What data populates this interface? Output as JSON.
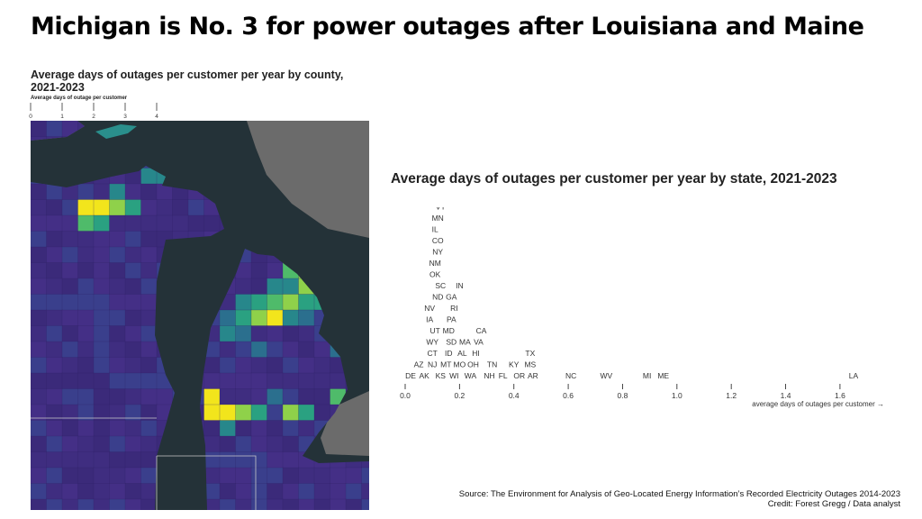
{
  "headline": "Michigan is No. 3 for power outages after Louisiana and Maine",
  "map": {
    "title": "Average days of outages per customer per year by county, 2021-2023",
    "legend_label": "Average days of outage per customer",
    "legend_ticks": [
      "0",
      "1",
      "2",
      "3",
      "4"
    ]
  },
  "colors": {
    "water": "#243238",
    "land_other": "#6b6b6b",
    "low": "#3b2a7a",
    "mid": "#2a8f8c",
    "high": "#f2e51c"
  },
  "chart_data": {
    "type": "scatter",
    "title": "Average days of outages per customer per year by state, 2021-2023",
    "xlabel": "average days of outages per customer →",
    "xlim": [
      0,
      1.65
    ],
    "x_ticks": [
      0.0,
      0.2,
      0.4,
      0.6,
      0.8,
      1.0,
      1.2,
      1.4,
      1.6
    ],
    "x_tick_labels": [
      "0.0",
      "0.2",
      "0.4",
      "0.6",
      "0.8",
      "1.0",
      "1.2",
      "1.4",
      "1.6"
    ],
    "points": [
      {
        "label": "DE",
        "x": 0.02
      },
      {
        "label": "AK",
        "x": 0.07
      },
      {
        "label": "AZ",
        "x": 0.05
      },
      {
        "label": "NJ",
        "x": 0.1
      },
      {
        "label": "CT",
        "x": 0.1
      },
      {
        "label": "WY",
        "x": 0.1
      },
      {
        "label": "UT",
        "x": 0.11
      },
      {
        "label": "IA",
        "x": 0.09
      },
      {
        "label": "NV",
        "x": 0.09
      },
      {
        "label": "KS",
        "x": 0.13
      },
      {
        "label": "ND",
        "x": 0.12
      },
      {
        "label": "SC",
        "x": 0.13
      },
      {
        "label": "OK",
        "x": 0.11
      },
      {
        "label": "NM",
        "x": 0.11
      },
      {
        "label": "NY",
        "x": 0.12
      },
      {
        "label": "CO",
        "x": 0.12
      },
      {
        "label": "IL",
        "x": 0.11
      },
      {
        "label": "MN",
        "x": 0.12
      },
      {
        "label": "VT",
        "x": 0.13
      },
      {
        "label": "NE",
        "x": 0.13
      },
      {
        "label": "MT",
        "x": 0.15
      },
      {
        "label": "WI",
        "x": 0.18
      },
      {
        "label": "ID",
        "x": 0.16
      },
      {
        "label": "SD",
        "x": 0.17
      },
      {
        "label": "MD",
        "x": 0.16
      },
      {
        "label": "PA",
        "x": 0.17
      },
      {
        "label": "RI",
        "x": 0.18
      },
      {
        "label": "GA",
        "x": 0.17
      },
      {
        "label": "MO",
        "x": 0.2
      },
      {
        "label": "IN",
        "x": 0.2
      },
      {
        "label": "AL",
        "x": 0.21
      },
      {
        "label": "MA",
        "x": 0.22
      },
      {
        "label": "WA",
        "x": 0.24
      },
      {
        "label": "OH",
        "x": 0.25
      },
      {
        "label": "HI",
        "x": 0.26
      },
      {
        "label": "VA",
        "x": 0.27
      },
      {
        "label": "CA",
        "x": 0.28
      },
      {
        "label": "NH",
        "x": 0.31
      },
      {
        "label": "TN",
        "x": 0.32
      },
      {
        "label": "FL",
        "x": 0.36
      },
      {
        "label": "KY",
        "x": 0.4
      },
      {
        "label": "OR",
        "x": 0.42
      },
      {
        "label": "MS",
        "x": 0.46
      },
      {
        "label": "TX",
        "x": 0.46
      },
      {
        "label": "AR",
        "x": 0.47
      },
      {
        "label": "NC",
        "x": 0.61
      },
      {
        "label": "WV",
        "x": 0.74
      },
      {
        "label": "MI",
        "x": 0.89
      },
      {
        "label": "ME",
        "x": 0.95
      },
      {
        "label": "LA",
        "x": 1.65
      }
    ]
  },
  "source": {
    "line1": "Source: The Environment for Analysis of Geo-Located Energy Information’s Recorded Electricity Outages 2014-2023",
    "line2": "Credit: Forest Gregg / Data analyst"
  }
}
